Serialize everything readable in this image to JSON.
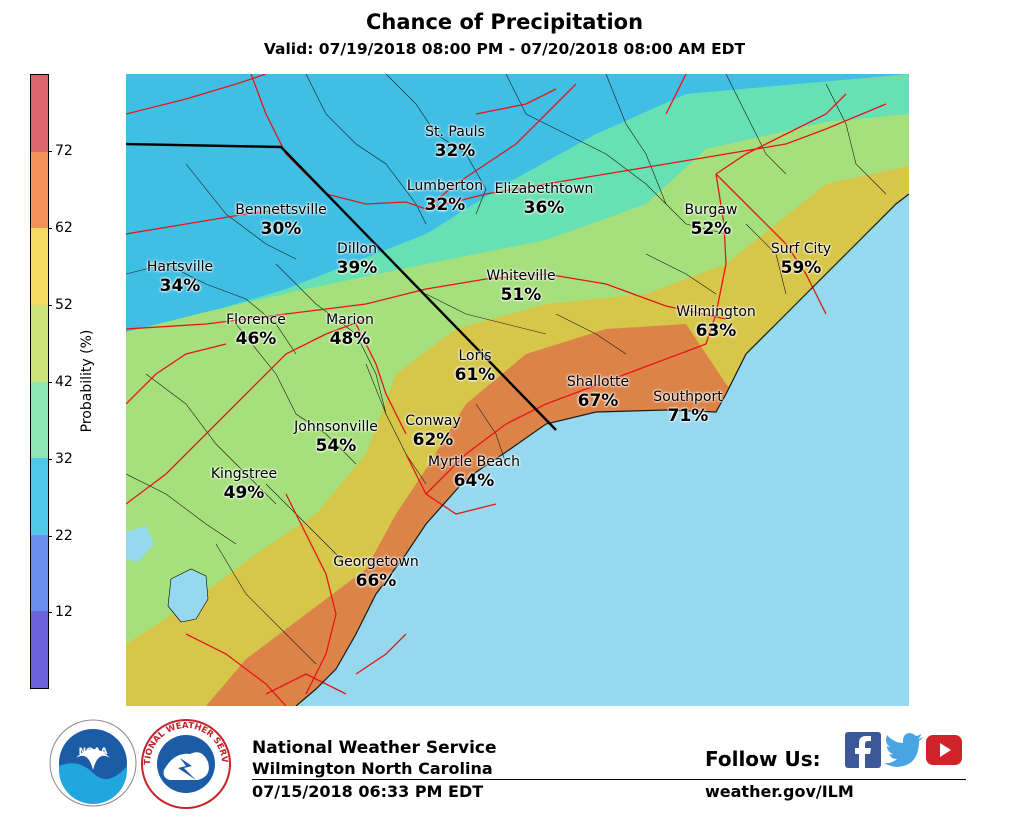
{
  "header": {
    "title": "Chance of Precipitation",
    "valid": "Valid: 07/19/2018 08:00 PM - 07/20/2018 08:00 AM EDT"
  },
  "legend": {
    "label": "Probability (%)",
    "ticks": [
      "72",
      "62",
      "52",
      "42",
      "32",
      "22",
      "12"
    ],
    "colors": [
      "#d9676a",
      "#f0925a",
      "#f5da62",
      "#cbe57a",
      "#8ee6b8",
      "#4fc8ea",
      "#6b8ff0",
      "#6a63dc"
    ]
  },
  "cities": [
    {
      "name": "St. Pauls",
      "value": "32%"
    },
    {
      "name": "Lumberton",
      "value": "32%"
    },
    {
      "name": "Elizabethtown",
      "value": "36%"
    },
    {
      "name": "Bennettsville",
      "value": "30%"
    },
    {
      "name": "Burgaw",
      "value": "52%"
    },
    {
      "name": "Dillon",
      "value": "39%"
    },
    {
      "name": "Surf City",
      "value": "59%"
    },
    {
      "name": "Hartsville",
      "value": "34%"
    },
    {
      "name": "Whiteville",
      "value": "51%"
    },
    {
      "name": "Wilmington",
      "value": "63%"
    },
    {
      "name": "Florence",
      "value": "46%"
    },
    {
      "name": "Marion",
      "value": "48%"
    },
    {
      "name": "Loris",
      "value": "61%"
    },
    {
      "name": "Shallotte",
      "value": "67%"
    },
    {
      "name": "Southport",
      "value": "71%"
    },
    {
      "name": "Johnsonville",
      "value": "54%"
    },
    {
      "name": "Conway",
      "value": "62%"
    },
    {
      "name": "Myrtle Beach",
      "value": "64%"
    },
    {
      "name": "Kingstree",
      "value": "49%"
    },
    {
      "name": "Georgetown",
      "value": "66%"
    }
  ],
  "footer": {
    "agency": "National Weather Service",
    "office": "Wilmington North Carolina",
    "issued": "07/15/2018 06:33 PM EDT",
    "follow": "Follow Us:",
    "website": "weather.gov/ILM",
    "noaa_logo_text": "NOAA",
    "nws_logo_text": "NATIONAL WEATHER SERVICE"
  },
  "map_colors": {
    "water": "#96d9ee",
    "blue_zone": "#40bfe4",
    "teal_zone": "#66e0b4",
    "light_green_zone": "#a6e07c",
    "yellow_zone": "#d6c64a",
    "orange_zone": "#dc8448",
    "red_zone": "#cc5a5a",
    "roads": "#e8141a",
    "state_line": "#000000"
  },
  "social": {
    "icons": [
      "facebook-icon",
      "twitter-icon",
      "youtube-icon"
    ]
  }
}
